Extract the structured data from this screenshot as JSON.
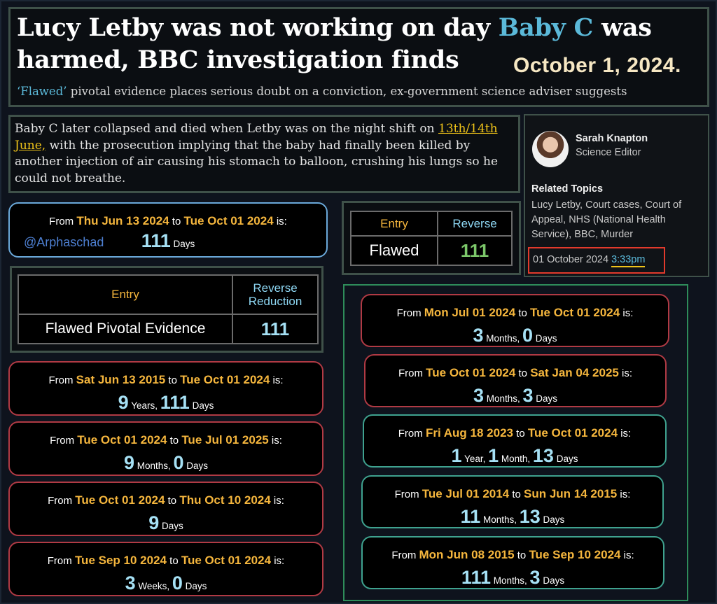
{
  "header": {
    "headline_pre": "Lucy Letby was not working on day ",
    "headline_highlight": "Baby C",
    "headline_post": " was harmed, BBC investigation finds",
    "date_overlay": "October 1, 2024.",
    "subhead_quote": "‘Flawed’",
    "subhead_rest": " pivotal evidence places serious doubt on a conviction, ex-government science adviser suggests"
  },
  "excerpt": {
    "text_pre": "Baby C later collapsed and died when Letby was on the night shift on ",
    "date_highlight": "13th/14th June,",
    "text_post": " with the prosecution implying that the baby had finally been killed by another injection of air causing his stomach to balloon, crushing his lungs so he could not breathe."
  },
  "author": {
    "name": "Sarah Knapton",
    "role": "Science Editor",
    "topics_title": "Related Topics",
    "topics": "Lucy Letby, Court cases, Court of Appeal, NHS (National Health Service), BBC, Murder",
    "date": "01 October 2024 ",
    "time": "3:33pm"
  },
  "watermark": "@Arphaschad",
  "table_small": {
    "head_entry": "Entry",
    "head_reverse": "Reverse",
    "row_text": "Flawed",
    "row_value": "111"
  },
  "table_large": {
    "head_entry": "Entry",
    "head_reverse_1": "Reverse",
    "head_reverse_2": "Reduction",
    "row_text": "Flawed Pivotal Evidence",
    "row_value": "111"
  },
  "calcs": [
    {
      "from": "Thu Jun 13 2024",
      "to": "Tue Oct 01 2024",
      "parts": [
        [
          "111",
          "Days"
        ]
      ]
    },
    {
      "from": "Sat Jun 13 2015",
      "to": "Tue Oct 01 2024",
      "parts": [
        [
          "9",
          "Years,"
        ],
        [
          "111",
          "Days"
        ]
      ]
    },
    {
      "from": "Tue Oct 01 2024",
      "to": "Tue Jul 01 2025",
      "parts": [
        [
          "9",
          "Months,"
        ],
        [
          "0",
          "Days"
        ]
      ]
    },
    {
      "from": "Tue Oct 01 2024",
      "to": "Thu Oct 10 2024",
      "parts": [
        [
          "9",
          "Days"
        ]
      ]
    },
    {
      "from": "Tue Sep 10 2024",
      "to": "Tue Oct 01 2024",
      "parts": [
        [
          "3",
          "Weeks,"
        ],
        [
          "0",
          "Days"
        ]
      ]
    },
    {
      "from": "Mon Jul 01 2024",
      "to": "Tue Oct 01 2024",
      "parts": [
        [
          "3",
          "Months,"
        ],
        [
          "0",
          "Days"
        ]
      ]
    },
    {
      "from": "Tue Oct 01 2024",
      "to": "Sat Jan 04 2025",
      "parts": [
        [
          "3",
          "Months,"
        ],
        [
          "3",
          "Days"
        ]
      ]
    },
    {
      "from": "Fri Aug 18 2023",
      "to": "Tue Oct 01 2024",
      "parts": [
        [
          "1",
          "Year,"
        ],
        [
          "1",
          "Month,"
        ],
        [
          "13",
          "Days"
        ]
      ]
    },
    {
      "from": "Tue Jul 01 2014",
      "to": "Sun Jun 14 2015",
      "parts": [
        [
          "11",
          "Months,"
        ],
        [
          "13",
          "Days"
        ]
      ]
    },
    {
      "from": "Mon Jun 08 2015",
      "to": "Tue Sep 10 2024",
      "parts": [
        [
          "111",
          "Months,"
        ],
        [
          "3",
          "Days"
        ]
      ]
    }
  ],
  "labels": {
    "from": "From ",
    "to": " to ",
    "is": " is:"
  },
  "colors": {
    "accent_blue": "#5bb9d9",
    "date_gold": "#f5b63d",
    "number_blue": "#a6e1f5",
    "green": "#7cc86a",
    "red_border": "#b03a44",
    "teal_border": "#3fa28f"
  }
}
